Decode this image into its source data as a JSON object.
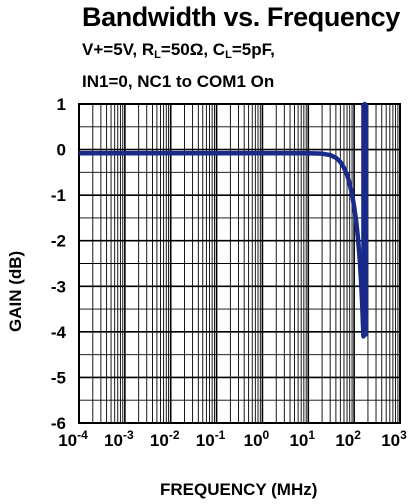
{
  "chart_data": {
    "type": "line",
    "title": "Bandwidth vs. Frequency",
    "conditions_line1": "V+=5V, R",
    "conditions_line1_sub": "L",
    "conditions_line1_mid": "=50Ω, C",
    "conditions_line1_sub2": "L",
    "conditions_line1_end": "=5pF,",
    "conditions_line2": "IN1=0, NC1 to COM1 On",
    "xlabel": "FREQUENCY (MHz)",
    "ylabel": "GAIN (dB)",
    "x_scale": "log",
    "xlim": [
      0.0001,
      1000
    ],
    "ylim": [
      -6,
      1
    ],
    "x_ticks": [
      {
        "base": "10",
        "exp": "-4"
      },
      {
        "base": "10",
        "exp": "-3"
      },
      {
        "base": "10",
        "exp": "-2"
      },
      {
        "base": "10",
        "exp": "-1"
      },
      {
        "base": "10",
        "exp": "0"
      },
      {
        "base": "10",
        "exp": "1"
      },
      {
        "base": "10",
        "exp": "2"
      },
      {
        "base": "10",
        "exp": "3"
      }
    ],
    "y_ticks": [
      "1",
      "0",
      "-1",
      "-2",
      "-3",
      "-4",
      "-5",
      "-6"
    ],
    "grid": true,
    "series": [
      {
        "color": "#1a2a8a",
        "x": [
          0.0001,
          0.001,
          0.01,
          0.1,
          1,
          10,
          20,
          30,
          40,
          50,
          60,
          70,
          80,
          90,
          100,
          110,
          120,
          130,
          140,
          150,
          155,
          160,
          162,
          165,
          168,
          170,
          172,
          175,
          180
        ],
        "y": [
          -0.08,
          -0.08,
          -0.08,
          -0.08,
          -0.08,
          -0.08,
          -0.09,
          -0.12,
          -0.18,
          -0.27,
          -0.4,
          -0.55,
          -0.75,
          -0.98,
          -1.25,
          -1.55,
          -1.9,
          -2.3,
          -2.8,
          -3.4,
          -3.8,
          -4.1,
          -3.5,
          -2.0,
          0.0,
          1.0,
          -1.0,
          -3.0,
          -4.1
        ]
      }
    ]
  }
}
